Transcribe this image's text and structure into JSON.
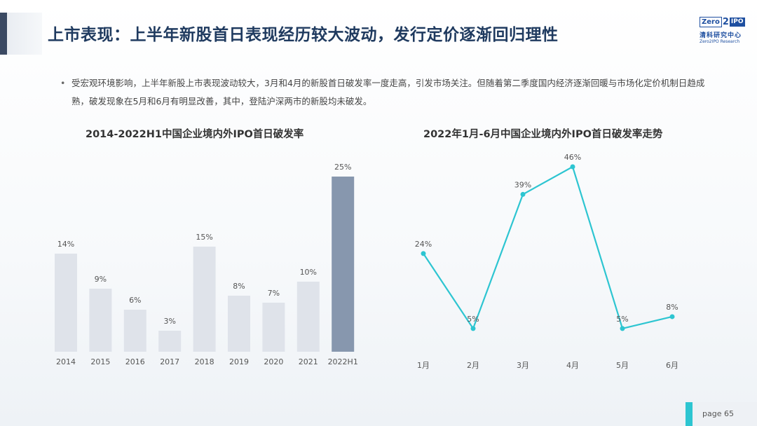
{
  "header": {
    "title": "上市表现：上半年新股首日表现经历较大波动，发行定价逐渐回归理性",
    "logo": {
      "zero": "Zero",
      "two": "2",
      "ipo": "IPO",
      "cn": "清科研究中心",
      "en": "Zero2IPO Research"
    }
  },
  "summary": {
    "bullet": "•",
    "text": "受宏观环境影响，上半年新股上市表现波动较大，3月和4月的新股首日破发率一度走高，引发市场关注。但随着第二季度国内经济逐渐回暖与市场化定价机制日趋成熟，破发现象在5月和6月有明显改善，其中，登陆沪深两市的新股均未破发。"
  },
  "chart_data": [
    {
      "type": "bar",
      "title": "2014-2022H1中国企业境内外IPO首日破发率",
      "categories": [
        "2014",
        "2015",
        "2016",
        "2017",
        "2018",
        "2019",
        "2020",
        "2021",
        "2022H1"
      ],
      "values": [
        14,
        9,
        6,
        3,
        15,
        8,
        7,
        10,
        25
      ],
      "value_labels": [
        "14%",
        "9%",
        "6%",
        "3%",
        "15%",
        "8%",
        "7%",
        "10%",
        "25%"
      ],
      "unit": "%",
      "ylim": [
        0,
        25
      ],
      "grid": false,
      "colors": {
        "default": "#dfe3ea",
        "highlight": "#8797ae"
      },
      "highlight_index": 8
    },
    {
      "type": "line",
      "title": "2022年1月-6月中国企业境内外IPO首日破发率走势",
      "categories": [
        "1月",
        "2月",
        "3月",
        "4月",
        "5月",
        "6月"
      ],
      "values": [
        24,
        5,
        39,
        46,
        5,
        8
      ],
      "value_labels": [
        "24%",
        "5%",
        "39%",
        "46%",
        "5%",
        "8%"
      ],
      "unit": "%",
      "ylim": [
        0,
        46
      ],
      "grid": false,
      "colors": {
        "line": "#2dc5d1"
      }
    }
  ],
  "footer": {
    "page_label": "page  65"
  }
}
